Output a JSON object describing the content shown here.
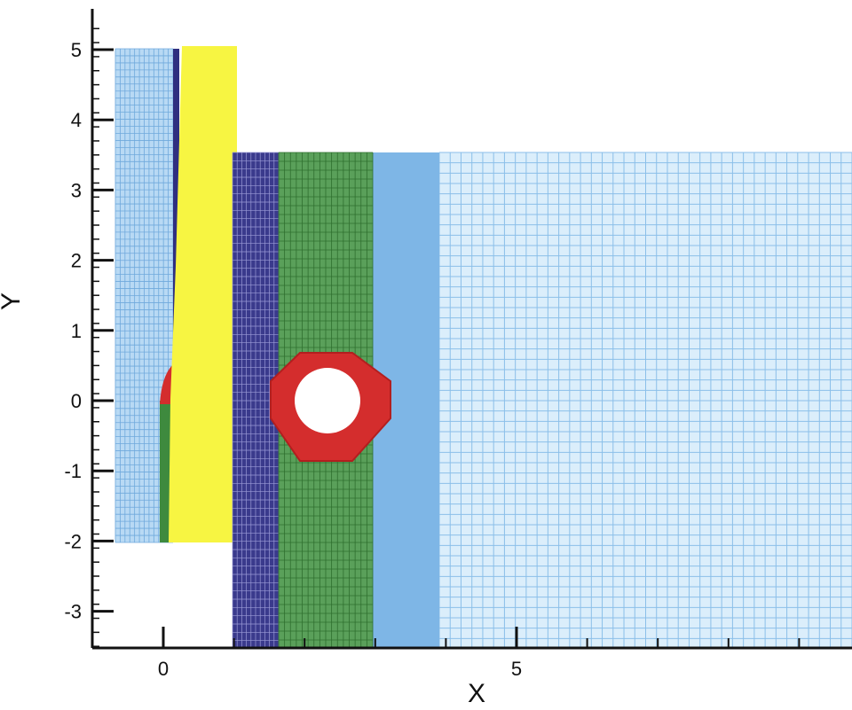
{
  "chart_data": {
    "type": "diagram",
    "xlabel": "X",
    "ylabel": "Y",
    "xlim": [
      -1,
      9.7
    ],
    "ylim": [
      -3.5,
      5.5
    ],
    "x_ticks": [
      {
        "value": 0,
        "label": "0"
      },
      {
        "value": 5,
        "label": "5"
      }
    ],
    "y_ticks": [
      {
        "value": 5,
        "label": "5"
      },
      {
        "value": 4,
        "label": "4"
      },
      {
        "value": 3,
        "label": "3"
      },
      {
        "value": 2,
        "label": "2"
      },
      {
        "value": 1,
        "label": "1"
      },
      {
        "value": 0,
        "label": "0"
      },
      {
        "value": -1,
        "label": "-1"
      },
      {
        "value": -2,
        "label": "-2"
      },
      {
        "value": -3,
        "label": "-3"
      }
    ],
    "colors": {
      "mesh_light_blue": "#93c4ec",
      "mesh_dense_blue": "#7eb6e6",
      "mesh_navy": "#2f2f80",
      "mesh_green": "#3e8a3e",
      "mesh_yellow": "#f7f542",
      "mesh_red": "#d42d2d",
      "axis": "#111111"
    }
  }
}
